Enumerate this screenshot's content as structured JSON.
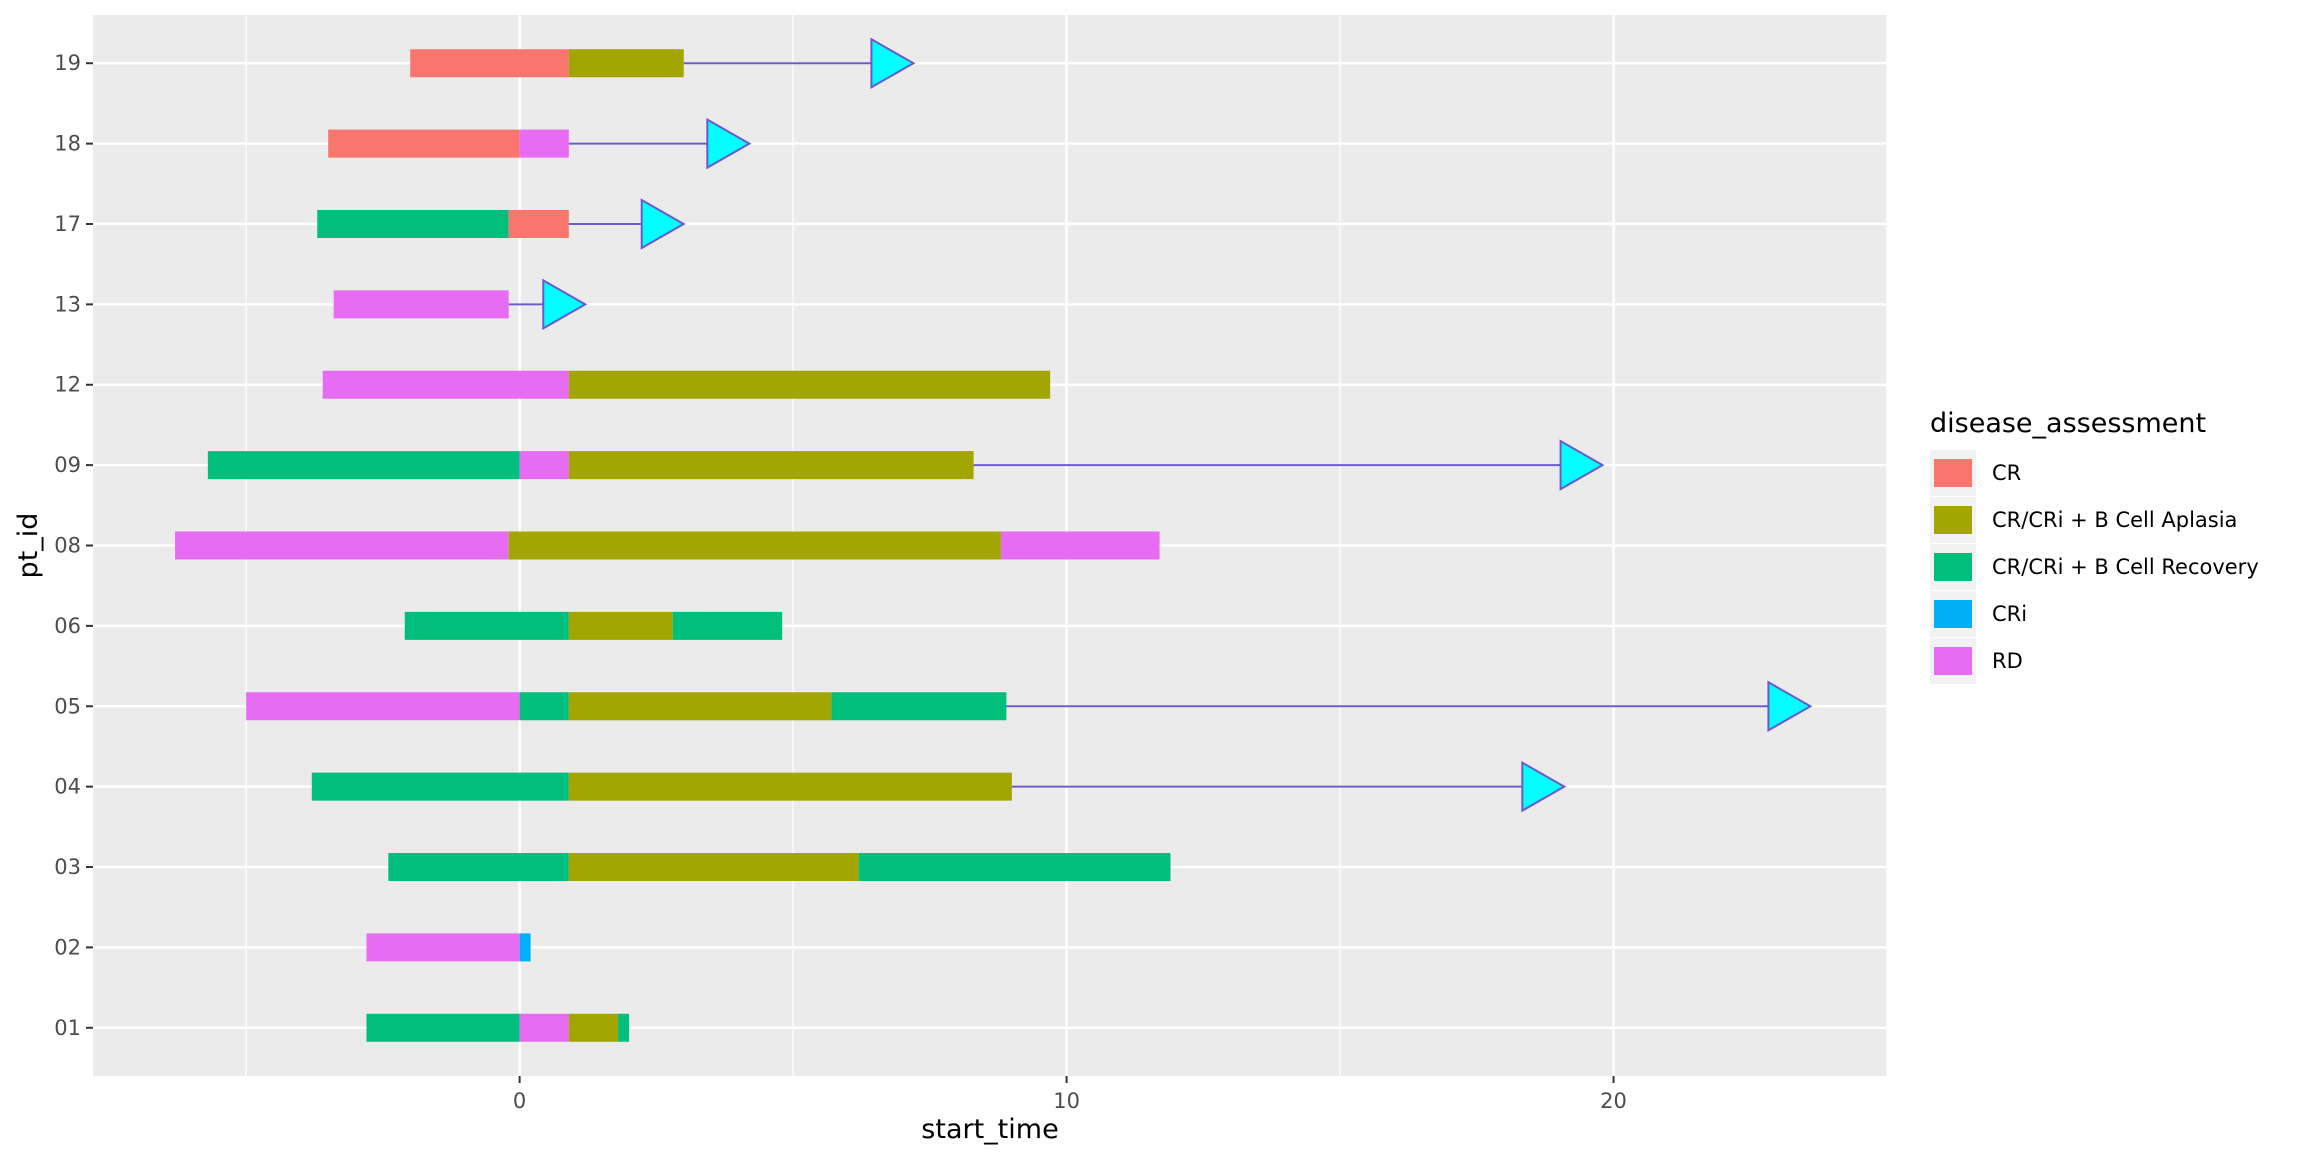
{
  "chart_data": {
    "type": "bar",
    "orientation": "horizontal",
    "xlabel": "start_time",
    "ylabel": "pt_id",
    "xlim": [
      -7.8,
      25.0
    ],
    "x_ticks": [
      0,
      10,
      20
    ],
    "x_tick_labels": [
      "0",
      "10",
      "20"
    ],
    "categories": [
      "01",
      "02",
      "03",
      "04",
      "05",
      "06",
      "08",
      "09",
      "12",
      "13",
      "17",
      "18",
      "19"
    ],
    "grid": true,
    "legend": {
      "title": "disease_assessment",
      "position": "right",
      "entries": [
        {
          "label": "CR",
          "color": "#F8766D"
        },
        {
          "label": "CR/CRi + B Cell Aplasia",
          "color": "#A3A500"
        },
        {
          "label": "CR/CRi + B Cell Recovery",
          "color": "#00BF7D"
        },
        {
          "label": "CRi",
          "color": "#00B0F6"
        },
        {
          "label": "RD",
          "color": "#E76BF3"
        }
      ]
    },
    "segments": [
      {
        "pt_id": "01",
        "start": -2.8,
        "end": 0.0,
        "assessment": "CR/CRi + B Cell Recovery"
      },
      {
        "pt_id": "01",
        "start": 0.0,
        "end": 0.9,
        "assessment": "RD"
      },
      {
        "pt_id": "01",
        "start": 0.9,
        "end": 1.8,
        "assessment": "CR/CRi + B Cell Aplasia"
      },
      {
        "pt_id": "01",
        "start": 1.8,
        "end": 2.0,
        "assessment": "CR/CRi + B Cell Recovery"
      },
      {
        "pt_id": "02",
        "start": -2.8,
        "end": 0.0,
        "assessment": "RD"
      },
      {
        "pt_id": "02",
        "start": 0.0,
        "end": 0.2,
        "assessment": "CRi"
      },
      {
        "pt_id": "03",
        "start": -2.4,
        "end": 0.9,
        "assessment": "CR/CRi + B Cell Recovery"
      },
      {
        "pt_id": "03",
        "start": 0.9,
        "end": 6.2,
        "assessment": "CR/CRi + B Cell Aplasia"
      },
      {
        "pt_id": "03",
        "start": 6.2,
        "end": 11.9,
        "assessment": "CR/CRi + B Cell Recovery"
      },
      {
        "pt_id": "04",
        "start": -3.8,
        "end": 0.9,
        "assessment": "CR/CRi + B Cell Recovery"
      },
      {
        "pt_id": "04",
        "start": 0.9,
        "end": 9.0,
        "assessment": "CR/CRi + B Cell Aplasia"
      },
      {
        "pt_id": "05",
        "start": -5.0,
        "end": 0.0,
        "assessment": "RD"
      },
      {
        "pt_id": "05",
        "start": 0.0,
        "end": 0.9,
        "assessment": "CR/CRi + B Cell Recovery"
      },
      {
        "pt_id": "05",
        "start": 0.9,
        "end": 5.7,
        "assessment": "CR/CRi + B Cell Aplasia"
      },
      {
        "pt_id": "05",
        "start": 5.7,
        "end": 8.9,
        "assessment": "CR/CRi + B Cell Recovery"
      },
      {
        "pt_id": "06",
        "start": -2.1,
        "end": 0.9,
        "assessment": "CR/CRi + B Cell Recovery"
      },
      {
        "pt_id": "06",
        "start": 0.9,
        "end": 2.8,
        "assessment": "CR/CRi + B Cell Aplasia"
      },
      {
        "pt_id": "06",
        "start": 2.8,
        "end": 4.8,
        "assessment": "CR/CRi + B Cell Recovery"
      },
      {
        "pt_id": "08",
        "start": -6.3,
        "end": -0.2,
        "assessment": "RD"
      },
      {
        "pt_id": "08",
        "start": -0.2,
        "end": 8.8,
        "assessment": "CR/CRi + B Cell Aplasia"
      },
      {
        "pt_id": "08",
        "start": 8.8,
        "end": 11.7,
        "assessment": "RD"
      },
      {
        "pt_id": "09",
        "start": -5.7,
        "end": 0.0,
        "assessment": "CR/CRi + B Cell Recovery"
      },
      {
        "pt_id": "09",
        "start": 0.0,
        "end": 0.9,
        "assessment": "RD"
      },
      {
        "pt_id": "09",
        "start": 0.9,
        "end": 8.3,
        "assessment": "CR/CRi + B Cell Aplasia"
      },
      {
        "pt_id": "12",
        "start": -3.6,
        "end": 0.9,
        "assessment": "RD"
      },
      {
        "pt_id": "12",
        "start": 0.9,
        "end": 9.7,
        "assessment": "CR/CRi + B Cell Aplasia"
      },
      {
        "pt_id": "13",
        "start": -3.4,
        "end": -0.2,
        "assessment": "RD"
      },
      {
        "pt_id": "17",
        "start": -3.7,
        "end": -0.2,
        "assessment": "CR/CRi + B Cell Recovery"
      },
      {
        "pt_id": "17",
        "start": -0.2,
        "end": 0.9,
        "assessment": "CR"
      },
      {
        "pt_id": "18",
        "start": -3.5,
        "end": 0.0,
        "assessment": "CR"
      },
      {
        "pt_id": "18",
        "start": 0.0,
        "end": 0.9,
        "assessment": "RD"
      },
      {
        "pt_id": "19",
        "start": -2.0,
        "end": 0.9,
        "assessment": "CR"
      },
      {
        "pt_id": "19",
        "start": 0.9,
        "end": 3.0,
        "assessment": "CR/CRi + B Cell Aplasia"
      }
    ],
    "arrows": [
      {
        "pt_id": "04",
        "from": 9.0,
        "to": 19.1
      },
      {
        "pt_id": "05",
        "from": 8.9,
        "to": 23.6
      },
      {
        "pt_id": "09",
        "from": 8.3,
        "to": 19.8
      },
      {
        "pt_id": "13",
        "from": -0.2,
        "to": 1.2
      },
      {
        "pt_id": "17",
        "from": 0.9,
        "to": 3.0
      },
      {
        "pt_id": "18",
        "from": 0.9,
        "to": 4.2
      },
      {
        "pt_id": "19",
        "from": 3.0,
        "to": 7.2
      }
    ],
    "colors": {
      "panel_background": "#EBEBEB",
      "gridline": "#FFFFFF",
      "arrow_line": "#6A5ACD",
      "arrow_head_fill": "#00FFFF",
      "arrow_head_stroke": "#6A5ACD"
    }
  }
}
